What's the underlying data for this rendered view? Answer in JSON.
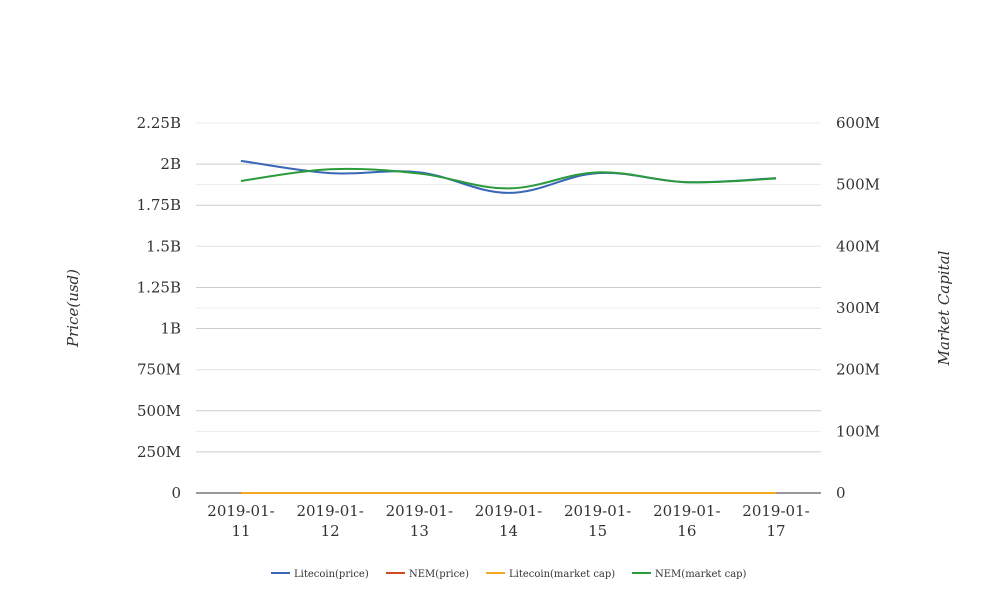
{
  "chart_data": {
    "type": "line",
    "categories": [
      "2019-01-11",
      "2019-01-12",
      "2019-01-13",
      "2019-01-14",
      "2019-01-15",
      "2019-01-16",
      "2019-01-17"
    ],
    "category_label_lines": [
      [
        "2019-01-",
        "11"
      ],
      [
        "2019-01-",
        "12"
      ],
      [
        "2019-01-",
        "13"
      ],
      [
        "2019-01-",
        "14"
      ],
      [
        "2019-01-",
        "15"
      ],
      [
        "2019-01-",
        "16"
      ],
      [
        "2019-01-",
        "17"
      ]
    ],
    "ylabel": "Price(usd)",
    "y2label": "Market Capital",
    "ylim": [
      0,
      2250000000
    ],
    "y2lim": [
      0,
      600000000
    ],
    "y_ticks": [
      {
        "value": 0,
        "label": "0"
      },
      {
        "value": 250000000,
        "label": "250M"
      },
      {
        "value": 500000000,
        "label": "500M"
      },
      {
        "value": 750000000,
        "label": "750M"
      },
      {
        "value": 1000000000,
        "label": "1B"
      },
      {
        "value": 1250000000,
        "label": "1.25B"
      },
      {
        "value": 1500000000,
        "label": "1.5B"
      },
      {
        "value": 1750000000,
        "label": "1.75B"
      },
      {
        "value": 2000000000,
        "label": "2B"
      },
      {
        "value": 2250000000,
        "label": "2.25B"
      }
    ],
    "y2_ticks": [
      {
        "value": 0,
        "label": "0"
      },
      {
        "value": 100000000,
        "label": "100M"
      },
      {
        "value": 200000000,
        "label": "200M"
      },
      {
        "value": 300000000,
        "label": "300M"
      },
      {
        "value": 400000000,
        "label": "400M"
      },
      {
        "value": 500000000,
        "label": "500M"
      },
      {
        "value": 600000000,
        "label": "600M"
      }
    ],
    "grid": true,
    "legend_position": "bottom",
    "series": [
      {
        "name": "Litecoin(price)",
        "axis": "left",
        "color": "#3a66b8",
        "values": [
          2020000000,
          1945000000,
          1950000000,
          1825000000,
          1945000000,
          1890000000,
          1915000000
        ]
      },
      {
        "name": "NEM(price)",
        "axis": "left",
        "color": "#d04a20",
        "values": [
          0.08,
          0.08,
          0.08,
          0.08,
          0.08,
          0.08,
          0.08
        ]
      },
      {
        "name": "Litecoin(market cap)",
        "axis": "right",
        "color": "#f5a623",
        "values": [
          32,
          32,
          32,
          31,
          33,
          32,
          32
        ]
      },
      {
        "name": "NEM(market cap)",
        "axis": "right",
        "color": "#2a9a3a",
        "values": [
          506000000,
          525000000,
          518000000,
          494000000,
          520000000,
          504000000,
          510000000
        ]
      }
    ]
  }
}
